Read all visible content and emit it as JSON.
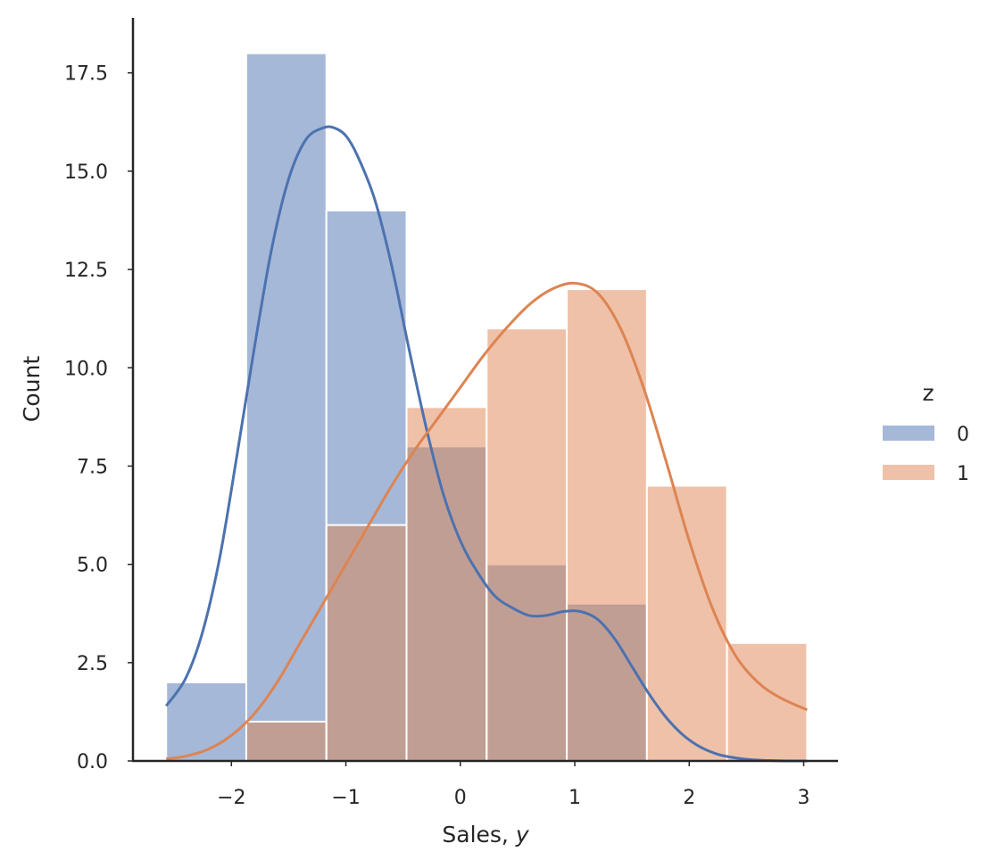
{
  "chart_data": {
    "type": "histogram",
    "xlabel_prefix": "Sales, ",
    "xlabel_var": "y",
    "ylabel": "Count",
    "xlim": [
      -2.86,
      3.3
    ],
    "ylim": [
      0,
      18.9
    ],
    "xticks": [
      -2,
      -1,
      0,
      1,
      2,
      3
    ],
    "xtick_labels": [
      "−2",
      "−1",
      "0",
      "1",
      "2",
      "3"
    ],
    "yticks": [
      0,
      2.5,
      5,
      7.5,
      10,
      12.5,
      15,
      17.5
    ],
    "ytick_labels": [
      "0.0",
      "2.5",
      "5.0",
      "7.5",
      "10.0",
      "12.5",
      "15.0",
      "17.5"
    ],
    "bin_edges": [
      -2.57,
      -1.87,
      -1.17,
      -0.47,
      0.23,
      0.93,
      1.63,
      2.33,
      3.03
    ],
    "legend_title": "z",
    "legend_position": "right",
    "grid": false,
    "series": [
      {
        "name": "0",
        "color": "#4c72b0",
        "counts": [
          2,
          18,
          14,
          8,
          5,
          4,
          0,
          0
        ],
        "kde": {
          "x": [
            -2.57,
            -2.4,
            -2.25,
            -2.1,
            -1.95,
            -1.8,
            -1.65,
            -1.5,
            -1.35,
            -1.2,
            -1.1,
            -1.0,
            -0.9,
            -0.75,
            -0.6,
            -0.45,
            -0.3,
            -0.15,
            0.0,
            0.15,
            0.3,
            0.45,
            0.6,
            0.75,
            0.9,
            1.05,
            1.2,
            1.35,
            1.5,
            1.65,
            1.8,
            1.95,
            2.1,
            2.25,
            2.4,
            2.55,
            2.7,
            2.85,
            3.03
          ],
          "y": [
            1.4,
            2.1,
            3.3,
            5.2,
            7.8,
            10.5,
            13.0,
            14.8,
            15.8,
            16.1,
            16.1,
            15.9,
            15.4,
            14.3,
            12.6,
            10.5,
            8.5,
            6.8,
            5.6,
            4.8,
            4.2,
            3.9,
            3.7,
            3.7,
            3.8,
            3.8,
            3.6,
            3.1,
            2.4,
            1.7,
            1.1,
            0.65,
            0.35,
            0.17,
            0.08,
            0.03,
            0.01,
            0.0,
            0.0
          ]
        }
      },
      {
        "name": "1",
        "color": "#dd8452",
        "counts": [
          0,
          1,
          6,
          9,
          11,
          12,
          7,
          3
        ],
        "kde": {
          "x": [
            -2.57,
            -2.4,
            -2.2,
            -2.0,
            -1.8,
            -1.6,
            -1.4,
            -1.2,
            -1.0,
            -0.8,
            -0.6,
            -0.4,
            -0.2,
            0.0,
            0.2,
            0.4,
            0.6,
            0.8,
            1.0,
            1.2,
            1.4,
            1.6,
            1.8,
            2.0,
            2.2,
            2.4,
            2.6,
            2.8,
            3.03
          ],
          "y": [
            0.05,
            0.12,
            0.3,
            0.65,
            1.2,
            2.0,
            3.0,
            4.0,
            5.0,
            6.0,
            7.0,
            7.9,
            8.7,
            9.5,
            10.3,
            11.0,
            11.6,
            12.0,
            12.15,
            11.9,
            11.0,
            9.5,
            7.6,
            5.6,
            3.9,
            2.7,
            2.0,
            1.6,
            1.3
          ]
        }
      }
    ]
  }
}
